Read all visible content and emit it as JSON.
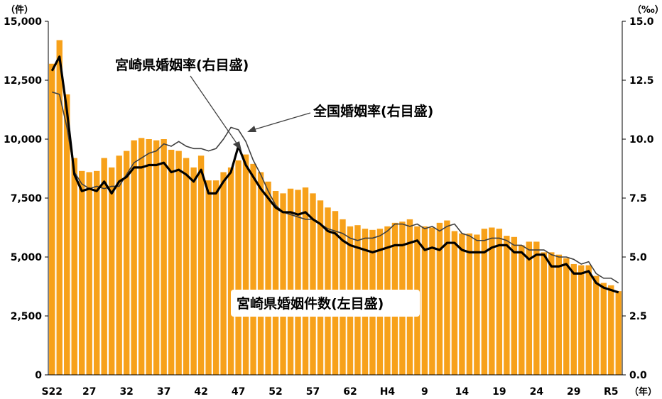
{
  "chart_data": {
    "type": "bar",
    "left_unit": "（件）",
    "right_unit": "（‰）",
    "x_unit": "（年）",
    "left_ylim": [
      0,
      15000
    ],
    "right_ylim": [
      0,
      15
    ],
    "left_ticks": [
      "0",
      "2,500",
      "5,000",
      "7,500",
      "10,000",
      "12,500",
      "15,000"
    ],
    "right_ticks": [
      "0.0",
      "2.5",
      "5.0",
      "7.5",
      "10.0",
      "12.5",
      "15.0"
    ],
    "x_tick_labels": [
      {
        "index": 0,
        "label": "S22"
      },
      {
        "index": 5,
        "label": "27"
      },
      {
        "index": 10,
        "label": "32"
      },
      {
        "index": 15,
        "label": "37"
      },
      {
        "index": 20,
        "label": "42"
      },
      {
        "index": 25,
        "label": "47"
      },
      {
        "index": 30,
        "label": "52"
      },
      {
        "index": 35,
        "label": "57"
      },
      {
        "index": 40,
        "label": "62"
      },
      {
        "index": 45,
        "label": "H4"
      },
      {
        "index": 50,
        "label": "9"
      },
      {
        "index": 55,
        "label": "14"
      },
      {
        "index": 60,
        "label": "19"
      },
      {
        "index": 65,
        "label": "24"
      },
      {
        "index": 70,
        "label": "29"
      },
      {
        "index": 75,
        "label": "R5"
      }
    ],
    "grid": false,
    "series": [
      {
        "name": "宮崎県婚姻件数(左目盛)",
        "axis": "left",
        "type": "bar",
        "color": "#F7A11A",
        "values": [
          13200,
          14200,
          11900,
          9200,
          8650,
          8600,
          8650,
          9200,
          8800,
          9300,
          9500,
          9950,
          10050,
          10000,
          9950,
          10000,
          9550,
          9500,
          9200,
          8800,
          9300,
          8250,
          8250,
          8600,
          8800,
          9100,
          9350,
          8950,
          8600,
          8200,
          7800,
          7700,
          7900,
          7850,
          7950,
          7700,
          7400,
          7100,
          6950,
          6600,
          6300,
          6350,
          6200,
          6150,
          6200,
          6300,
          6450,
          6500,
          6600,
          6300,
          6300,
          6250,
          6450,
          6550,
          6100,
          6000,
          6000,
          5950,
          6200,
          6250,
          6200,
          5900,
          5850,
          5500,
          5650,
          5650,
          5200,
          5200,
          5100,
          4950,
          4700,
          4650,
          4650,
          4200,
          3900,
          3800,
          3550
        ]
      },
      {
        "name": "宮崎県婚姻率(右目盛)",
        "axis": "right",
        "type": "line",
        "color": "#000000",
        "values": [
          12.9,
          13.5,
          11.2,
          8.5,
          7.8,
          7.9,
          7.8,
          8.2,
          7.7,
          8.2,
          8.4,
          8.8,
          8.8,
          8.9,
          8.9,
          9.0,
          8.6,
          8.7,
          8.5,
          8.2,
          8.7,
          7.7,
          7.7,
          8.2,
          8.6,
          9.7,
          8.9,
          8.4,
          7.9,
          7.5,
          7.1,
          6.9,
          6.9,
          6.8,
          6.9,
          6.6,
          6.4,
          6.1,
          6.0,
          5.7,
          5.5,
          5.4,
          5.3,
          5.2,
          5.3,
          5.4,
          5.5,
          5.5,
          5.6,
          5.7,
          5.3,
          5.4,
          5.3,
          5.6,
          5.6,
          5.3,
          5.2,
          5.2,
          5.2,
          5.4,
          5.5,
          5.5,
          5.2,
          5.2,
          4.9,
          5.1,
          5.1,
          4.6,
          4.6,
          4.7,
          4.3,
          4.3,
          4.4,
          3.9,
          3.7,
          3.6,
          3.5
        ]
      },
      {
        "name": "全国婚姻率(右目盛)",
        "axis": "right",
        "type": "line",
        "color": "#404040",
        "values": [
          12.0,
          11.9,
          10.5,
          8.6,
          8.1,
          7.9,
          8.0,
          7.9,
          8.0,
          8.0,
          8.5,
          9.0,
          9.2,
          9.4,
          9.5,
          9.8,
          9.7,
          9.9,
          9.7,
          9.6,
          9.6,
          9.5,
          9.6,
          10.0,
          10.5,
          10.4,
          9.9,
          9.1,
          8.5,
          7.8,
          7.2,
          6.9,
          6.8,
          6.7,
          6.6,
          6.6,
          6.4,
          6.2,
          6.1,
          6.0,
          5.8,
          5.7,
          5.8,
          5.8,
          5.9,
          6.1,
          6.4,
          6.4,
          6.3,
          6.4,
          6.2,
          6.3,
          6.1,
          6.3,
          6.4,
          6.0,
          5.9,
          5.7,
          5.7,
          5.8,
          5.8,
          5.7,
          5.5,
          5.5,
          5.3,
          5.3,
          5.3,
          5.1,
          5.0,
          5.0,
          4.9,
          4.7,
          4.8,
          4.3,
          4.1,
          4.1,
          3.9
        ]
      }
    ],
    "annotations": {
      "miyazaki_rate": "宮崎県婚姻率(右目盛)",
      "national_rate": "全国婚姻率(右目盛)",
      "miyazaki_count": "宮崎県婚姻件数(左目盛)"
    }
  }
}
